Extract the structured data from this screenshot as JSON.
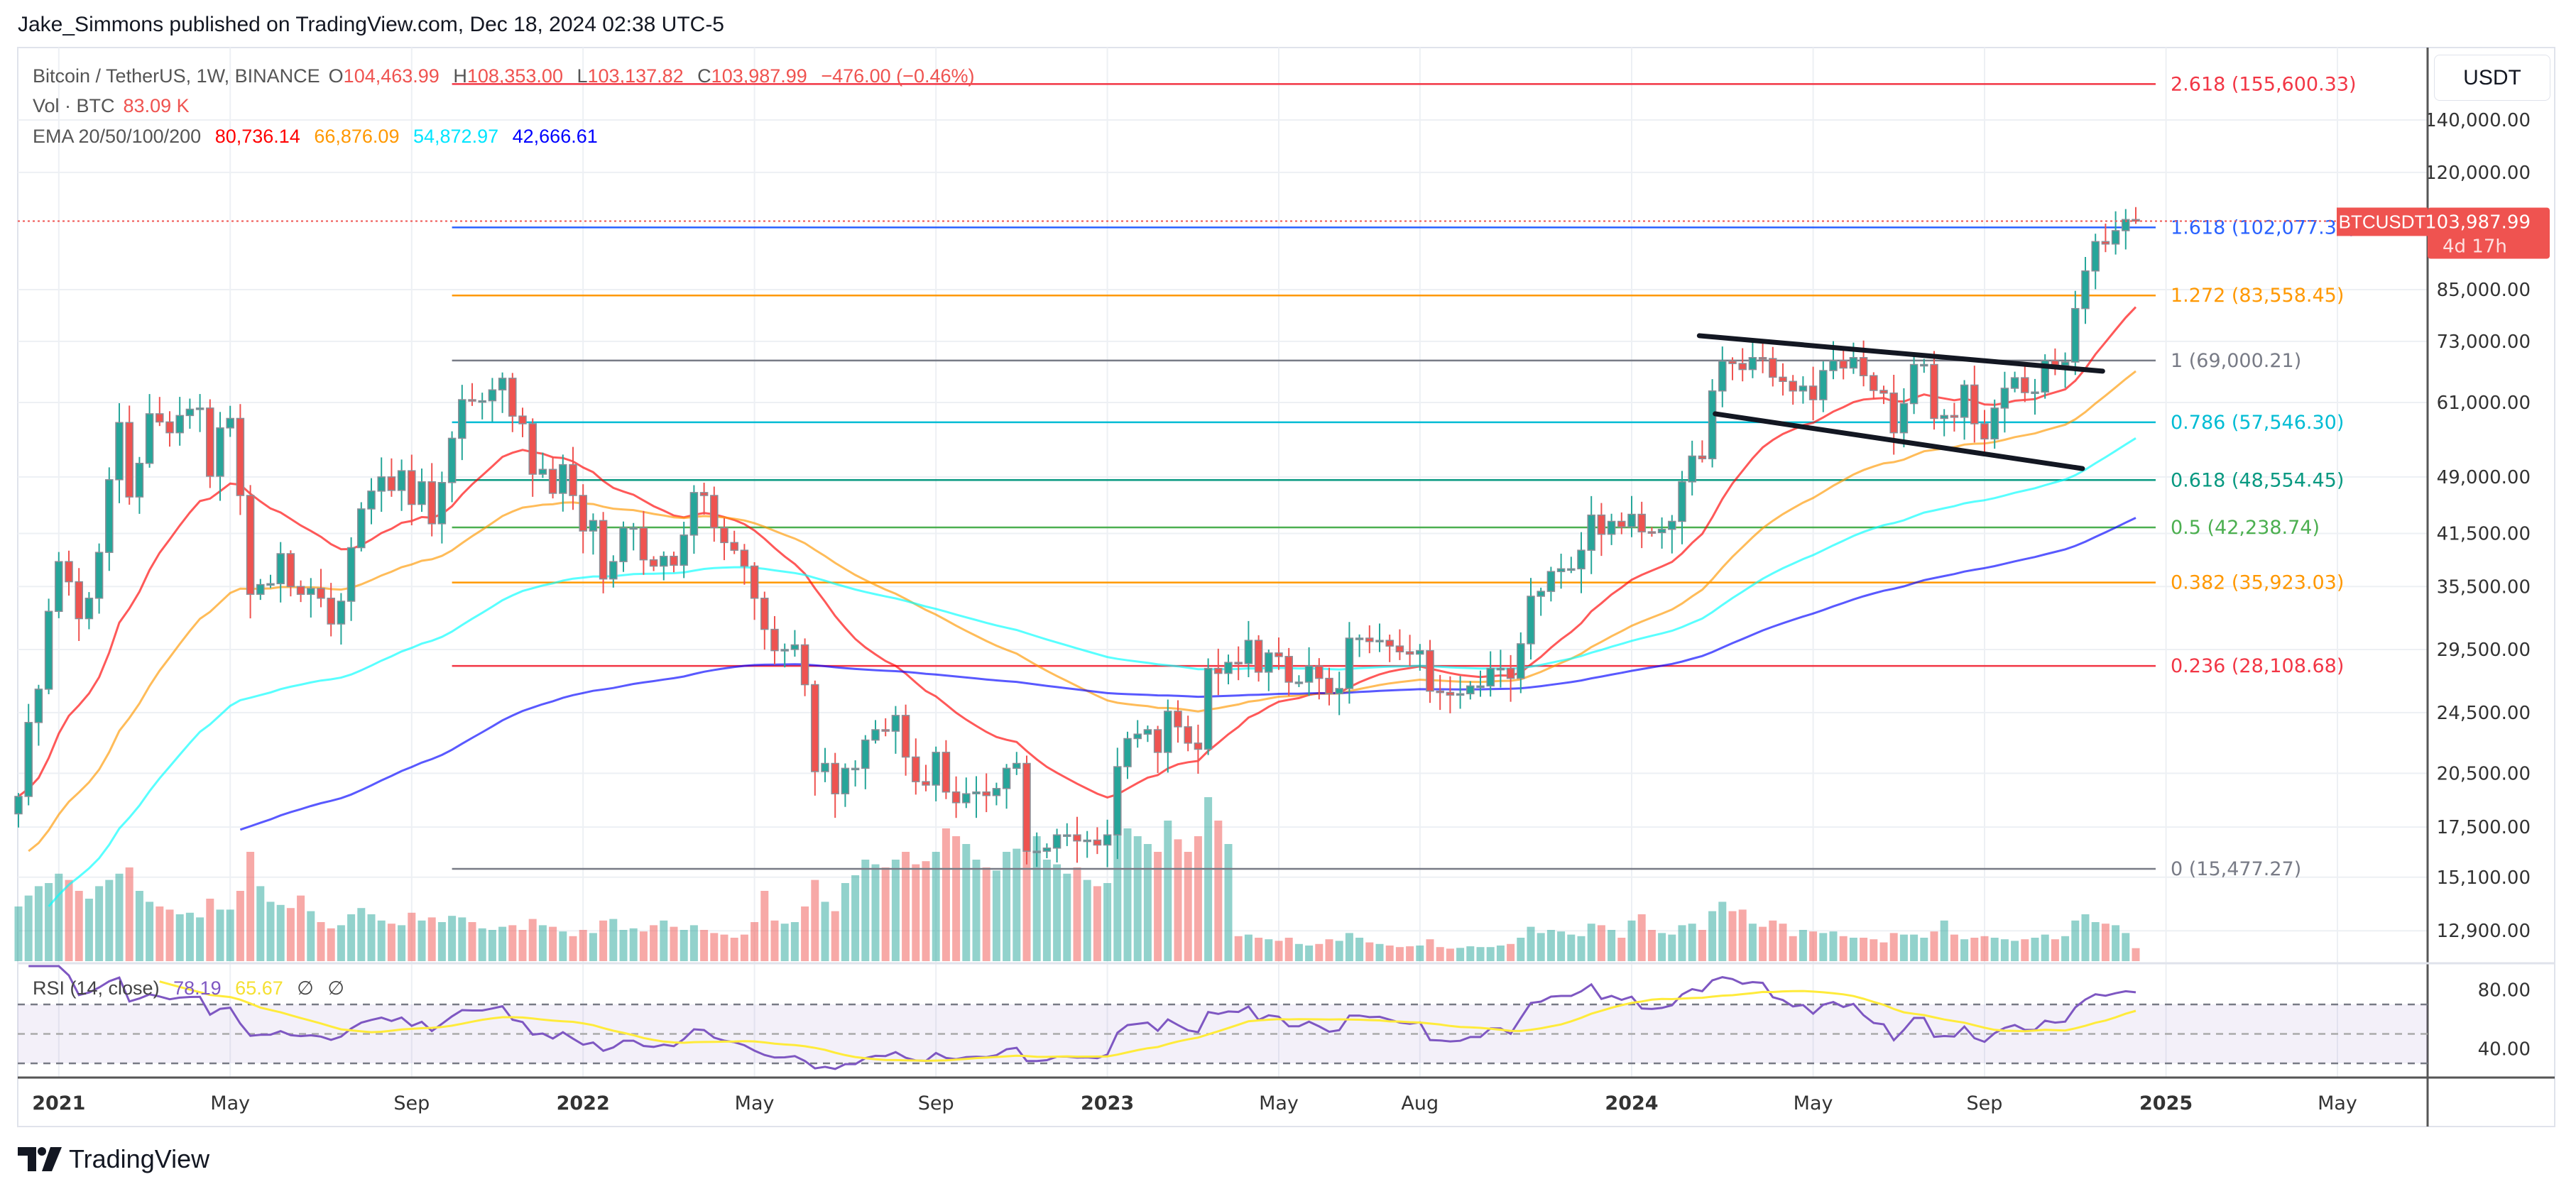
{
  "header": {
    "title": "Jake_Simmons published on TradingView.com, Dec 18, 2024 02:38 UTC-5"
  },
  "legend": {
    "symbol": "Bitcoin / TetherUS, 1W, BINANCE",
    "o_label": "O",
    "o": "104,463.99",
    "h_label": "H",
    "h": "108,353.00",
    "l_label": "L",
    "l": "103,137.82",
    "c_label": "C",
    "c": "103,987.99",
    "change": "−476.00 (−0.46%)",
    "vol_label": "Vol · BTC",
    "vol": "83.09 K",
    "ema_label": "EMA 20/50/100/200",
    "ema_values": [
      "80,736.14",
      "66,876.09",
      "54,872.97",
      "42,666.61"
    ],
    "rsi_label": "RSI (14, close)",
    "rsi": "78.19",
    "rsi_ma": "65.67",
    "rsi_na1": "∅",
    "rsi_na2": "∅"
  },
  "price_axis": {
    "currency": "USDT",
    "last_symbol": "BTCUSDT",
    "last_price": "103,987.99",
    "countdown": "4d 17h"
  },
  "brand": {
    "name": "TradingView",
    "icon": "tradingview-logo-icon"
  },
  "colors": {
    "up": "#26a69a",
    "down": "#ef5350",
    "ema": [
      "#ff0000",
      "#ff9800",
      "#00ffff",
      "#0000ff"
    ],
    "rsi": "#7e57c2",
    "rsi_ma": "#ffeb3b"
  },
  "chart_data": {
    "type": "candlestick",
    "interval": "1W",
    "y_scale": "log",
    "grid": true,
    "start_week": "2020-12-07",
    "close": [
      19150,
      23800,
      26250,
      33000,
      38200,
      36000,
      32300,
      34300,
      39250,
      48600,
      57500,
      46200,
      51000,
      59000,
      57600,
      55800,
      58700,
      59800,
      60000,
      49100,
      56600,
      58200,
      46400,
      34700,
      35700,
      35800,
      39100,
      35500,
      34700,
      35300,
      34300,
      31800,
      34000,
      39800,
      44600,
      47000,
      49000,
      47100,
      49900,
      45200,
      48300,
      42700,
      48200,
      54900,
      61500,
      61300,
      61300,
      63300,
      65500,
      58600,
      57300,
      49400,
      50100,
      46700,
      50800,
      46400,
      41800,
      43100,
      36300,
      38200,
      42200,
      42200,
      38400,
      37700,
      38800,
      37800,
      41300,
      46800,
      46400,
      42200,
      40400,
      39500,
      37700,
      34300,
      31300,
      29400,
      29500,
      29900,
      26600,
      20600,
      21100,
      19300,
      20800,
      20800,
      22600,
      23300,
      23200,
      24300,
      21500,
      20000,
      19800,
      21800,
      19400,
      18800,
      19300,
      19400,
      19200,
      19600,
      20800,
      21100,
      16300,
      16300,
      16450,
      17100,
      17100,
      16800,
      16840,
      16600,
      17100,
      20900,
      22700,
      23000,
      23300,
      21800,
      24600,
      23500,
      22400,
      22000,
      27900,
      27500,
      28400,
      28300,
      30300,
      27600,
      29200,
      28900,
      26800,
      26800,
      28100,
      27100,
      25900,
      26300,
      30500,
      30500,
      30200,
      30300,
      29800,
      29300,
      29100,
      29400,
      26100,
      26000,
      25800,
      25900,
      26500,
      26500,
      27900,
      27900,
      27100,
      30000,
      34500,
      35000,
      37100,
      37400,
      37400,
      39500,
      43800,
      41400,
      43000,
      42300,
      43900,
      41700,
      41600,
      42000,
      43000,
      48300,
      52100,
      51700,
      63100,
      68900,
      68400,
      67200,
      69600,
      69400,
      65700,
      64900,
      63100,
      64000,
      61500,
      67000,
      69000,
      67500,
      69600,
      66000,
      63200,
      62700,
      55800,
      60800,
      68200,
      68200,
      58200,
      58700,
      58400,
      64200,
      57300,
      54800,
      60000,
      63600,
      65600,
      62800,
      62900,
      69000,
      68000,
      68700,
      80400,
      89800,
      97900,
      97200,
      101100,
      104463.99,
      103987.99
    ],
    "last_candle": {
      "open": 104463.99,
      "high": 108353.0,
      "low": 103137.82,
      "close": 103987.99
    },
    "volume_k_btc": [
      350,
      420,
      480,
      500,
      560,
      520,
      450,
      400,
      480,
      520,
      560,
      600,
      450,
      380,
      350,
      330,
      300,
      310,
      280,
      400,
      330,
      330,
      450,
      700,
      480,
      380,
      360,
      340,
      420,
      320,
      250,
      210,
      230,
      300,
      340,
      300,
      260,
      240,
      230,
      310,
      260,
      280,
      250,
      290,
      280,
      250,
      210,
      200,
      220,
      230,
      200,
      270,
      230,
      220,
      190,
      160,
      200,
      180,
      260,
      270,
      200,
      210,
      190,
      230,
      260,
      220,
      200,
      230,
      200,
      180,
      170,
      150,
      170,
      250,
      450,
      260,
      240,
      250,
      350,
      520,
      380,
      320,
      500,
      550,
      650,
      620,
      600,
      650,
      700,
      620,
      640,
      700,
      850,
      800,
      750,
      650,
      600,
      580,
      700,
      720,
      1000,
      800,
      650,
      620,
      560,
      600,
      520,
      480,
      500,
      900,
      850,
      800,
      750,
      700,
      900,
      780,
      700,
      800,
      1050,
      900,
      750,
      160,
      170,
      150,
      140,
      130,
      150,
      110,
      100,
      110,
      140,
      130,
      180,
      150,
      120,
      110,
      100,
      90,
      95,
      100,
      140,
      90,
      80,
      85,
      95,
      90,
      90,
      100,
      110,
      150,
      220,
      180,
      200,
      190,
      170,
      160,
      240,
      230,
      200,
      150,
      260,
      300,
      200,
      180,
      170,
      230,
      240,
      200,
      320,
      380,
      320,
      330,
      240,
      220,
      260,
      240,
      160,
      200,
      190,
      180,
      190,
      160,
      150,
      150,
      140,
      120,
      180,
      170,
      170,
      150,
      190,
      260,
      170,
      140,
      150,
      160,
      150,
      140,
      130,
      140,
      150,
      170,
      140,
      160,
      260,
      300,
      250,
      240,
      230,
      180,
      83.09
    ],
    "price_ticks": [
      140000,
      120000,
      85000,
      73000,
      61000,
      49000,
      41500,
      35500,
      29500,
      24500,
      20500,
      17500,
      15100,
      12900
    ],
    "price_tick_labels": [
      "140,000.00",
      "120,000.00",
      "85,000.00",
      "73,000.00",
      "61,000.00",
      "49,000.00",
      "41,500.00",
      "35,500.00",
      "29,500.00",
      "24,500.00",
      "20,500.00",
      "17,500.00",
      "15,100.00",
      "12,900.00"
    ],
    "time_ticks": [
      {
        "label": "2021",
        "date": "2021-01-04",
        "year": true
      },
      {
        "label": "May",
        "date": "2021-05-03"
      },
      {
        "label": "Sep",
        "date": "2021-09-06"
      },
      {
        "label": "2022",
        "date": "2022-01-03",
        "year": true
      },
      {
        "label": "May",
        "date": "2022-05-02"
      },
      {
        "label": "Sep",
        "date": "2022-09-05"
      },
      {
        "label": "2023",
        "date": "2023-01-02",
        "year": true
      },
      {
        "label": "May",
        "date": "2023-05-01"
      },
      {
        "label": "Aug",
        "date": "2023-08-07"
      },
      {
        "label": "2024",
        "date": "2024-01-01",
        "year": true
      },
      {
        "label": "May",
        "date": "2024-05-06"
      },
      {
        "label": "Sep",
        "date": "2024-09-02"
      },
      {
        "label": "2025",
        "date": "2025-01-06",
        "year": true
      },
      {
        "label": "May",
        "date": "2025-05-05"
      }
    ],
    "rsi_ticks": [
      {
        "value": 80,
        "label": "80.00"
      },
      {
        "value": 40,
        "label": "40.00"
      }
    ],
    "rsi_bands": [
      70,
      50,
      30
    ],
    "fibonacci": {
      "from": "2021-10-04",
      "to": "2024-12-30",
      "levels": [
        {
          "ratio": "2.618",
          "price": 155600.33,
          "label": "2.618 (155,600.33)",
          "color": "#f23645"
        },
        {
          "ratio": "1.618",
          "price": 102077.39,
          "label": "1.618 (102,077.39)",
          "color": "#2962ff"
        },
        {
          "ratio": "1.272",
          "price": 83558.45,
          "label": "1.272 (83,558.45)",
          "color": "#ff9800"
        },
        {
          "ratio": "1",
          "price": 69000.21,
          "label": "1 (69,000.21)",
          "color": "#787b86"
        },
        {
          "ratio": "0.786",
          "price": 57546.3,
          "label": "0.786 (57,546.30)",
          "color": "#00bcd4"
        },
        {
          "ratio": "0.618",
          "price": 48554.45,
          "label": "0.618 (48,554.45)",
          "color": "#089981"
        },
        {
          "ratio": "0.5",
          "price": 42238.74,
          "label": "0.5 (42,238.74)",
          "color": "#4caf50"
        },
        {
          "ratio": "0.382",
          "price": 35923.03,
          "label": "0.382 (35,923.03)",
          "color": "#ff9800"
        },
        {
          "ratio": "0.236",
          "price": 28108.68,
          "label": "0.236 (28,108.68)",
          "color": "#f23645"
        },
        {
          "ratio": "0",
          "price": 15477.27,
          "label": "0 (15,477.27)",
          "color": "#787b86"
        }
      ]
    },
    "trendlines": [
      {
        "from": {
          "date": "2024-02-17",
          "price": 74230
        },
        "to": {
          "date": "2024-11-23",
          "price": 66880
        }
      },
      {
        "from": {
          "date": "2024-02-28",
          "price": 59000
        },
        "to": {
          "date": "2024-11-09",
          "price": 50220
        }
      }
    ]
  }
}
